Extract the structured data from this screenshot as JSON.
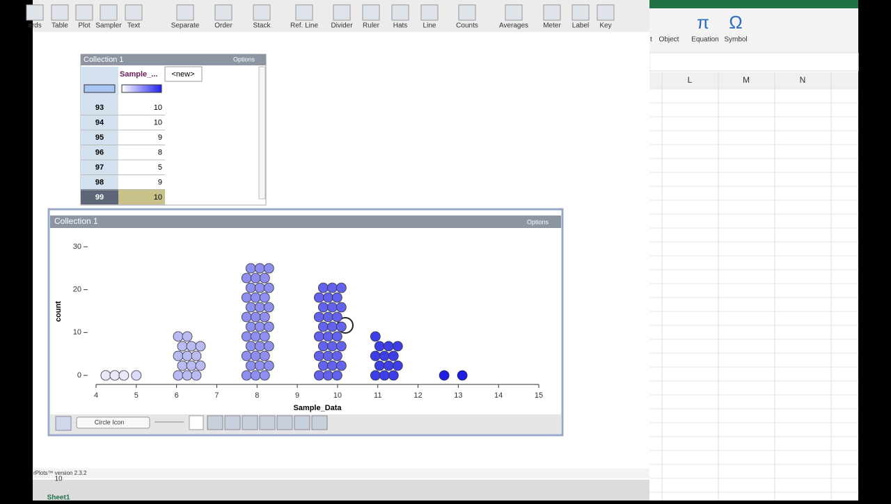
{
  "toolbar": [
    "ards",
    "Table",
    "Plot",
    "Sampler",
    "Text",
    "Separate",
    "Order",
    "Stack",
    "Ref. Line",
    "Divider",
    "Ruler",
    "Hats",
    "Line",
    "Counts",
    "Averages",
    "Meter",
    "Label",
    "Key"
  ],
  "table": {
    "title": "Collection 1",
    "options": "Options",
    "columns": [
      "Sample_...",
      "<new>"
    ],
    "rows": [
      [
        "93",
        "10"
      ],
      [
        "94",
        "10"
      ],
      [
        "95",
        "9"
      ],
      [
        "96",
        "8"
      ],
      [
        "97",
        "5"
      ],
      [
        "98",
        "9"
      ],
      [
        "99",
        "10"
      ]
    ]
  },
  "plot": {
    "title": "Collection 1",
    "options": "Options",
    "x_label": "Sample_Data",
    "y_label": "count",
    "xlim": [
      4,
      15
    ],
    "xticks": [
      4,
      5,
      6,
      7,
      8,
      9,
      10,
      11,
      12,
      13,
      14,
      15
    ],
    "ylim": [
      0,
      30
    ],
    "yticks": [
      0,
      10,
      20,
      30
    ],
    "stacks": [
      {
        "x": 4.5,
        "n": 3
      },
      {
        "x": 5,
        "n": 1
      },
      {
        "x": 6.3,
        "n": 14
      },
      {
        "x": 8,
        "n": 36
      },
      {
        "x": 9.8,
        "n": 30
      },
      {
        "x": 11.2,
        "n": 13
      },
      {
        "x": 12.65,
        "n": 1
      },
      {
        "x": 13.1,
        "n": 1
      }
    ],
    "icon_menu": "Circle Icon"
  },
  "status": "rPlots™ version 2.3.2",
  "excel": {
    "ribbon": [
      "t",
      "Object",
      "Equation",
      "Symbol"
    ],
    "symbols": [
      "π",
      "Ω"
    ],
    "columns": [
      "L",
      "M",
      "N"
    ],
    "sheet": "Sheet1",
    "cell": "10"
  }
}
